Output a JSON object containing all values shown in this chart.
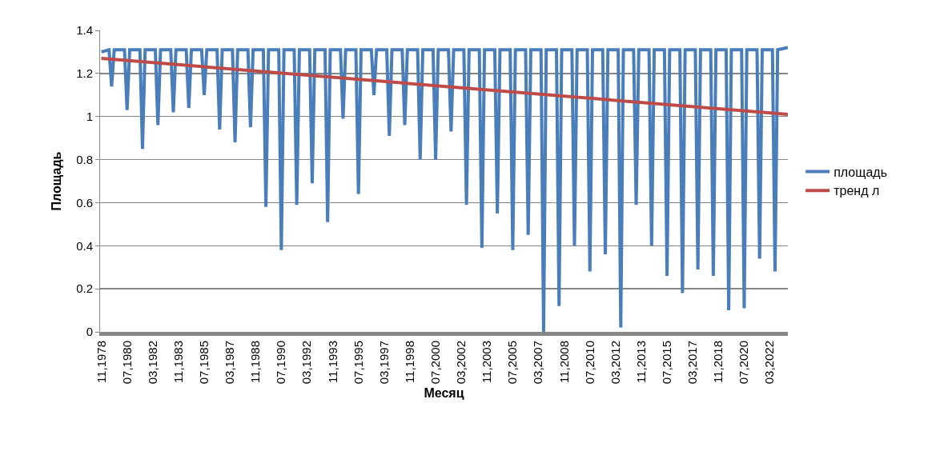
{
  "chart_data": {
    "type": "line",
    "xlabel": "Месяц",
    "ylabel": "Площадь",
    "xlim": [
      "1978-10",
      "2023-05"
    ],
    "xticks": [
      {
        "value": "1978-11",
        "label": "11,1978"
      },
      {
        "value": "1980-07",
        "label": "07,1980"
      },
      {
        "value": "1982-03",
        "label": "03,1982"
      },
      {
        "value": "1983-11",
        "label": "11,1983"
      },
      {
        "value": "1985-07",
        "label": "07,1985"
      },
      {
        "value": "1987-03",
        "label": "03,1987"
      },
      {
        "value": "1988-11",
        "label": "11,1988"
      },
      {
        "value": "1990-07",
        "label": "07,1990"
      },
      {
        "value": "1992-03",
        "label": "03,1992"
      },
      {
        "value": "1993-11",
        "label": "11,1993"
      },
      {
        "value": "1995-07",
        "label": "07,1995"
      },
      {
        "value": "1997-03",
        "label": "03,1997"
      },
      {
        "value": "1998-11",
        "label": "11,1998"
      },
      {
        "value": "2000-07",
        "label": "07,2000"
      },
      {
        "value": "2002-03",
        "label": "03,2002"
      },
      {
        "value": "2003-11",
        "label": "11,2003"
      },
      {
        "value": "2005-07",
        "label": "07,2005"
      },
      {
        "value": "2007-03",
        "label": "03,2007"
      },
      {
        "value": "2008-11",
        "label": "11,2008"
      },
      {
        "value": "2010-07",
        "label": "07,2010"
      },
      {
        "value": "2012-03",
        "label": "03,2012"
      },
      {
        "value": "2013-11",
        "label": "11,2013"
      },
      {
        "value": "2015-07",
        "label": "07,2015"
      },
      {
        "value": "2017-03",
        "label": "03,2017"
      },
      {
        "value": "2018-11",
        "label": "11,2018"
      },
      {
        "value": "2020-07",
        "label": "07,2020"
      },
      {
        "value": "2022-03",
        "label": "03,2022"
      }
    ],
    "ylim": [
      0,
      1.4
    ],
    "yticks": [
      0,
      0.2,
      0.4,
      0.6,
      0.8,
      1,
      1.2,
      1.4
    ],
    "grid": "y",
    "legend": "right",
    "marker": "none",
    "line_style": "solid",
    "series": [
      {
        "name": "площадь",
        "color": "#4a7ebb",
        "x": [
          "1978-11",
          "1979-05",
          "1979-07",
          "1979-09",
          "1980-05",
          "1980-07",
          "1980-09",
          "1981-05",
          "1981-07",
          "1981-09",
          "1982-05",
          "1982-07",
          "1982-09",
          "1983-05",
          "1983-07",
          "1983-09",
          "1984-05",
          "1984-07",
          "1984-09",
          "1985-05",
          "1985-07",
          "1985-09",
          "1986-05",
          "1986-07",
          "1986-09",
          "1987-05",
          "1987-07",
          "1987-09",
          "1988-05",
          "1988-07",
          "1988-09",
          "1989-05",
          "1989-07",
          "1989-09",
          "1990-05",
          "1990-07",
          "1990-09",
          "1991-05",
          "1991-07",
          "1991-09",
          "1992-05",
          "1992-07",
          "1992-09",
          "1993-05",
          "1993-07",
          "1993-09",
          "1994-05",
          "1994-07",
          "1994-09",
          "1995-05",
          "1995-07",
          "1995-09",
          "1996-05",
          "1996-07",
          "1996-09",
          "1997-05",
          "1997-07",
          "1997-09",
          "1998-05",
          "1998-07",
          "1998-09",
          "1999-05",
          "1999-07",
          "1999-09",
          "2000-05",
          "2000-07",
          "2000-09",
          "2001-05",
          "2001-07",
          "2001-09",
          "2002-05",
          "2002-07",
          "2002-09",
          "2003-05",
          "2003-07",
          "2003-09",
          "2004-05",
          "2004-07",
          "2004-09",
          "2005-05",
          "2005-07",
          "2005-09",
          "2006-05",
          "2006-07",
          "2006-09",
          "2007-05",
          "2007-07",
          "2007-09",
          "2008-05",
          "2008-07",
          "2008-09",
          "2009-05",
          "2009-07",
          "2009-09",
          "2010-05",
          "2010-07",
          "2010-09",
          "2011-05",
          "2011-07",
          "2011-09",
          "2012-05",
          "2012-07",
          "2012-09",
          "2013-05",
          "2013-07",
          "2013-09",
          "2014-05",
          "2014-07",
          "2014-09",
          "2015-05",
          "2015-07",
          "2015-09",
          "2016-05",
          "2016-07",
          "2016-09",
          "2017-05",
          "2017-07",
          "2017-09",
          "2018-05",
          "2018-07",
          "2018-09",
          "2019-05",
          "2019-07",
          "2019-09",
          "2020-05",
          "2020-07",
          "2020-09",
          "2021-05",
          "2021-07",
          "2021-09",
          "2022-05",
          "2022-07",
          "2022-09",
          "2023-05"
        ],
        "values": [
          1.3,
          1.31,
          1.14,
          1.31,
          1.31,
          1.03,
          1.31,
          1.31,
          0.85,
          1.31,
          1.31,
          0.96,
          1.31,
          1.31,
          1.02,
          1.31,
          1.31,
          1.04,
          1.31,
          1.31,
          1.1,
          1.31,
          1.31,
          0.94,
          1.31,
          1.31,
          0.88,
          1.31,
          1.31,
          0.95,
          1.31,
          1.31,
          0.58,
          1.31,
          1.31,
          0.38,
          1.31,
          1.31,
          0.59,
          1.31,
          1.31,
          0.69,
          1.31,
          1.31,
          0.51,
          1.31,
          1.31,
          0.99,
          1.31,
          1.31,
          0.64,
          1.31,
          1.31,
          1.1,
          1.31,
          1.31,
          0.91,
          1.31,
          1.31,
          0.96,
          1.31,
          1.31,
          0.8,
          1.31,
          1.31,
          0.8,
          1.31,
          1.31,
          0.93,
          1.31,
          1.31,
          0.59,
          1.31,
          1.31,
          0.39,
          1.31,
          1.31,
          0.55,
          1.31,
          1.31,
          0.38,
          1.31,
          1.31,
          0.45,
          1.31,
          1.31,
          0,
          1.31,
          1.31,
          0.12,
          1.31,
          1.31,
          0.4,
          1.31,
          1.31,
          0.28,
          1.31,
          1.31,
          0.36,
          1.31,
          1.31,
          0.02,
          1.31,
          1.31,
          0.59,
          1.31,
          1.31,
          0.4,
          1.31,
          1.31,
          0.26,
          1.31,
          1.31,
          0.18,
          1.31,
          1.31,
          0.29,
          1.31,
          1.31,
          0.26,
          1.31,
          1.31,
          0.1,
          1.31,
          1.31,
          0.11,
          1.31,
          1.31,
          0.34,
          1.31,
          1.31,
          0.28,
          1.31,
          1.32
        ]
      },
      {
        "name": "тренд л",
        "color": "#be4b48",
        "x": [
          "1978-11",
          "2023-05"
        ],
        "values": [
          1.27,
          1.01
        ]
      }
    ]
  }
}
